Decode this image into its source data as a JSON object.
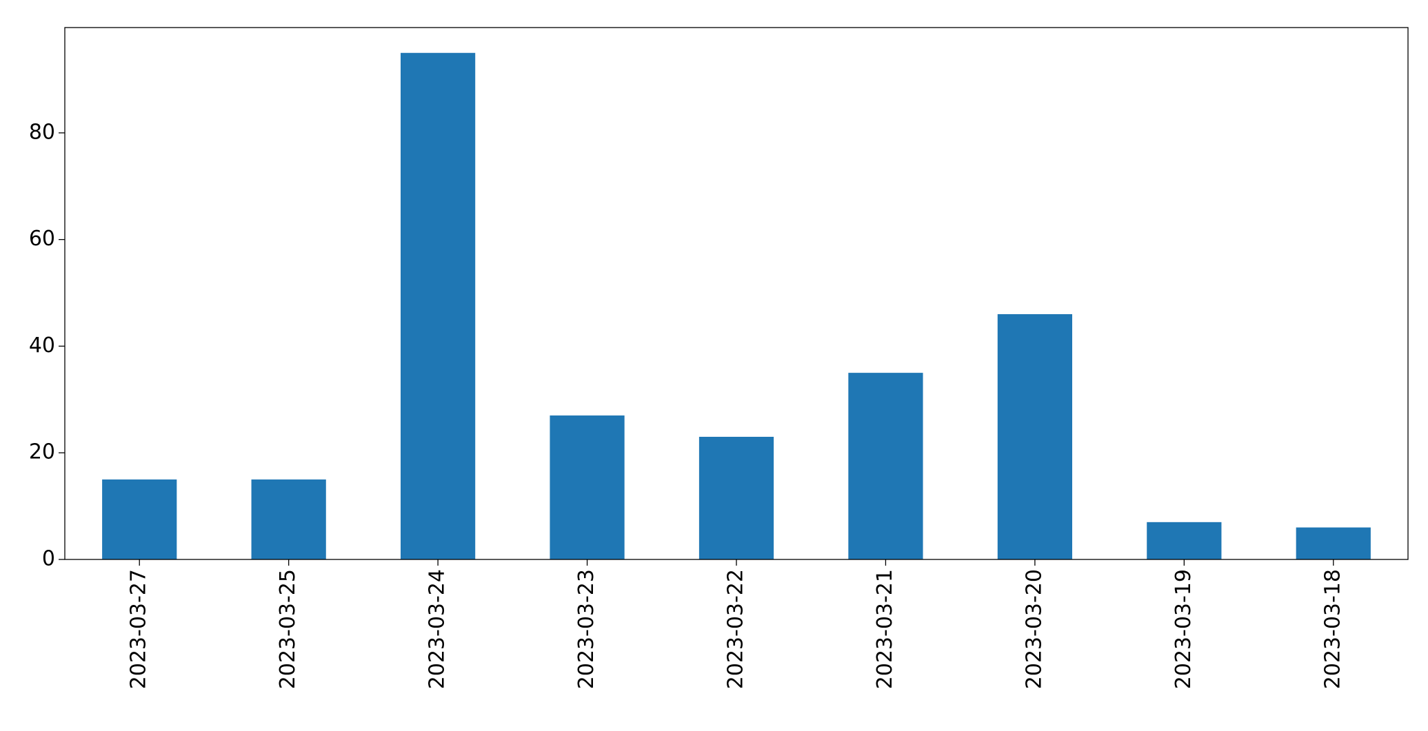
{
  "chart_data": {
    "type": "bar",
    "categories": [
      "2023-03-27",
      "2023-03-25",
      "2023-03-24",
      "2023-03-23",
      "2023-03-22",
      "2023-03-21",
      "2023-03-20",
      "2023-03-19",
      "2023-03-18"
    ],
    "values": [
      15,
      15,
      95,
      27,
      23,
      35,
      46,
      7,
      6
    ],
    "color": "#1f77b4",
    "ylim": [
      0,
      99.75
    ],
    "yticks": [
      0,
      20,
      40,
      60,
      80
    ],
    "grid": false
  }
}
